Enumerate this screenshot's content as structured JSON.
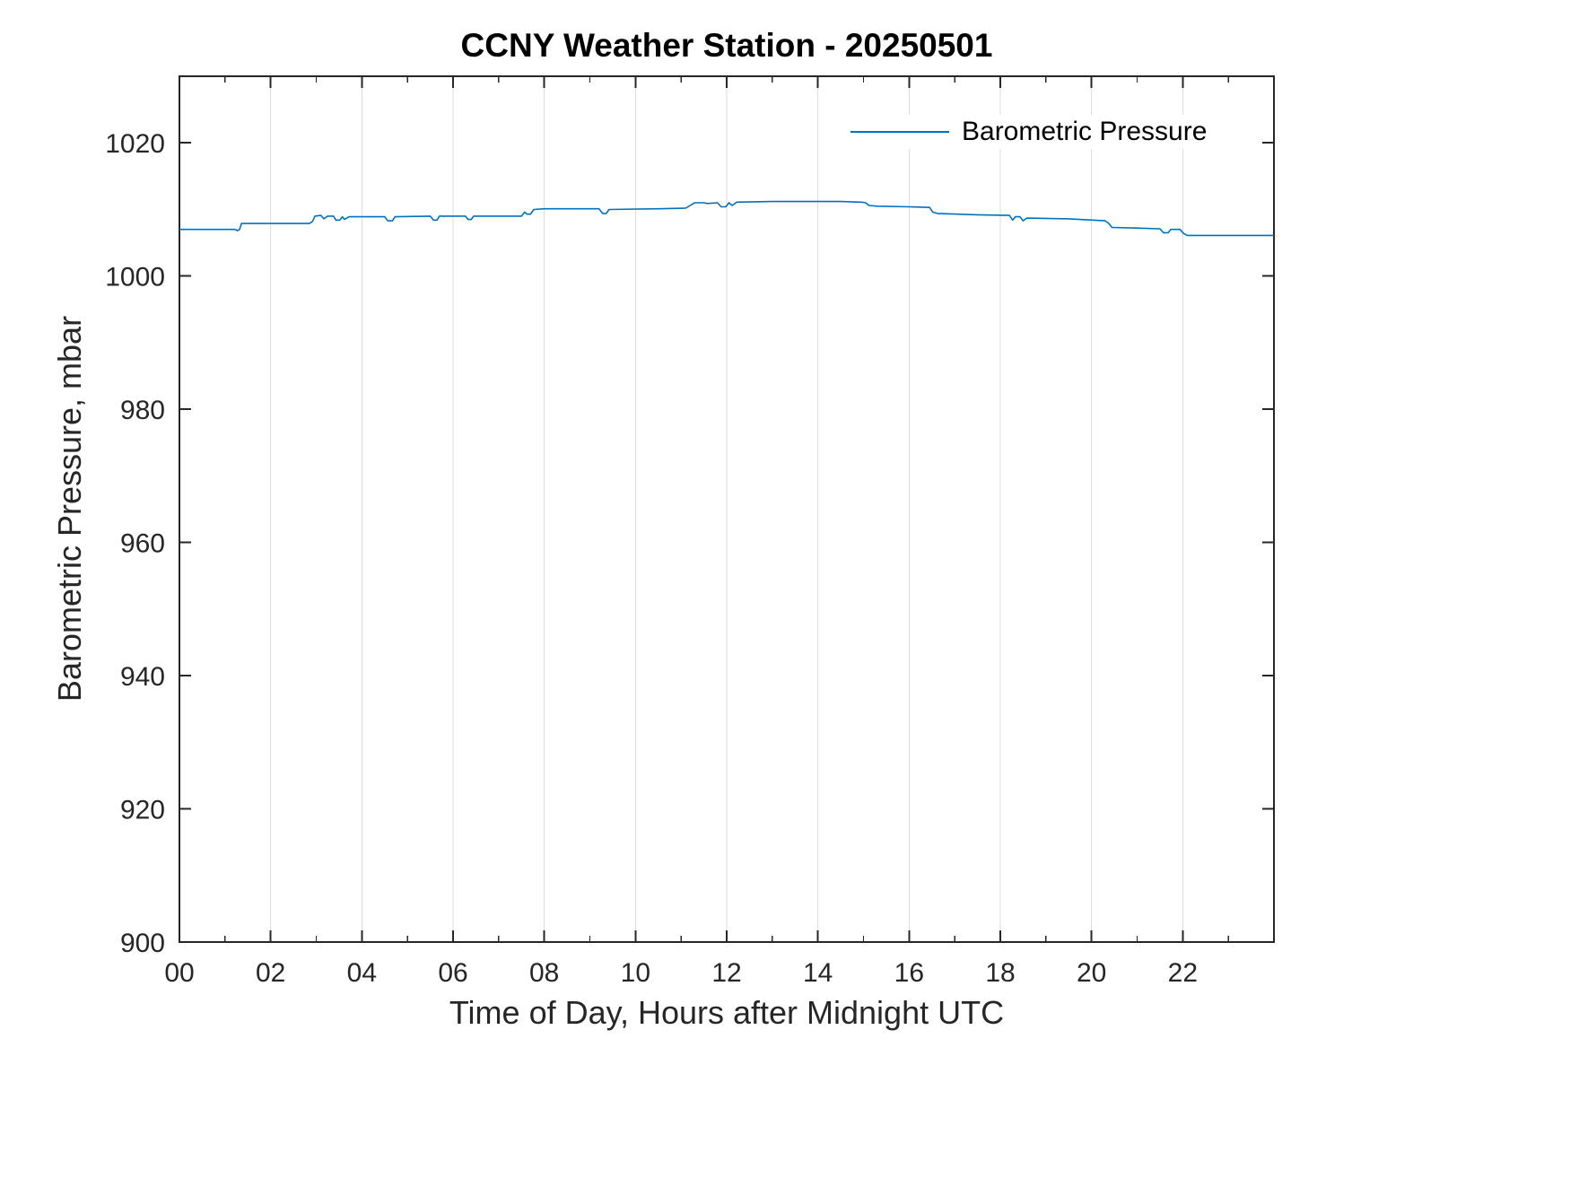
{
  "page": {
    "background": "#ffffff"
  },
  "chart_data": {
    "type": "line",
    "title": "CCNY Weather Station - 20250501",
    "xlabel": "Time of Day, Hours after Midnight UTC",
    "ylabel": "Barometric Pressure, mbar",
    "xlim": [
      0,
      24
    ],
    "ylim": [
      900,
      1030
    ],
    "xticks": [
      0,
      2,
      4,
      6,
      8,
      10,
      12,
      14,
      16,
      18,
      20,
      22
    ],
    "xtick_labels": [
      "00",
      "02",
      "04",
      "06",
      "08",
      "10",
      "12",
      "14",
      "16",
      "18",
      "20",
      "22"
    ],
    "yticks": [
      900,
      920,
      940,
      960,
      980,
      1000,
      1020
    ],
    "ytick_labels": [
      "900",
      "920",
      "940",
      "960",
      "980",
      "1000",
      "1020"
    ],
    "minor_xtick_step": 1,
    "grid": {
      "vertical": true,
      "horizontal": false
    },
    "legend": {
      "position": "top-right",
      "entries": [
        "Barometric Pressure"
      ]
    },
    "colors": {
      "line": "#0072BD",
      "axis": "#262626",
      "grid": "#dcdcdc",
      "tick_label": "#262626"
    },
    "series": [
      {
        "name": "Barometric Pressure",
        "points": [
          [
            0.0,
            1007.0
          ],
          [
            1.22,
            1007.0
          ],
          [
            1.27,
            1006.8
          ],
          [
            1.32,
            1007.0
          ],
          [
            1.36,
            1007.9
          ],
          [
            2.85,
            1007.9
          ],
          [
            2.92,
            1008.2
          ],
          [
            2.97,
            1009.0
          ],
          [
            3.1,
            1009.1
          ],
          [
            3.17,
            1008.6
          ],
          [
            3.25,
            1009.0
          ],
          [
            3.38,
            1009.0
          ],
          [
            3.43,
            1008.4
          ],
          [
            3.52,
            1008.4
          ],
          [
            3.57,
            1008.9
          ],
          [
            3.62,
            1008.5
          ],
          [
            3.72,
            1008.9
          ],
          [
            4.5,
            1008.9
          ],
          [
            4.57,
            1008.3
          ],
          [
            4.67,
            1008.3
          ],
          [
            4.73,
            1008.9
          ],
          [
            5.5,
            1009.0
          ],
          [
            5.57,
            1008.4
          ],
          [
            5.65,
            1008.4
          ],
          [
            5.7,
            1009.0
          ],
          [
            6.27,
            1009.0
          ],
          [
            6.33,
            1008.5
          ],
          [
            6.4,
            1008.5
          ],
          [
            6.45,
            1009.0
          ],
          [
            7.5,
            1009.0
          ],
          [
            7.57,
            1009.6
          ],
          [
            7.62,
            1009.3
          ],
          [
            7.7,
            1009.3
          ],
          [
            7.77,
            1010.0
          ],
          [
            8.0,
            1010.1
          ],
          [
            9.2,
            1010.1
          ],
          [
            9.28,
            1009.4
          ],
          [
            9.36,
            1009.4
          ],
          [
            9.42,
            1010.0
          ],
          [
            10.5,
            1010.1
          ],
          [
            11.1,
            1010.2
          ],
          [
            11.2,
            1010.6
          ],
          [
            11.3,
            1011.0
          ],
          [
            11.5,
            1011.0
          ],
          [
            11.58,
            1010.9
          ],
          [
            11.8,
            1011.0
          ],
          [
            11.88,
            1010.4
          ],
          [
            11.98,
            1010.4
          ],
          [
            12.05,
            1011.0
          ],
          [
            12.12,
            1010.6
          ],
          [
            12.22,
            1011.1
          ],
          [
            13.0,
            1011.2
          ],
          [
            14.5,
            1011.2
          ],
          [
            14.95,
            1011.1
          ],
          [
            15.05,
            1011.0
          ],
          [
            15.12,
            1010.6
          ],
          [
            15.3,
            1010.5
          ],
          [
            16.0,
            1010.4
          ],
          [
            16.45,
            1010.3
          ],
          [
            16.52,
            1009.6
          ],
          [
            16.62,
            1009.4
          ],
          [
            17.5,
            1009.2
          ],
          [
            18.2,
            1009.1
          ],
          [
            18.27,
            1008.4
          ],
          [
            18.33,
            1008.9
          ],
          [
            18.43,
            1008.9
          ],
          [
            18.5,
            1008.3
          ],
          [
            18.58,
            1008.7
          ],
          [
            19.5,
            1008.6
          ],
          [
            20.3,
            1008.3
          ],
          [
            20.38,
            1007.9
          ],
          [
            20.45,
            1007.3
          ],
          [
            21.0,
            1007.2
          ],
          [
            21.5,
            1007.1
          ],
          [
            21.58,
            1006.5
          ],
          [
            21.68,
            1006.5
          ],
          [
            21.74,
            1007.0
          ],
          [
            21.94,
            1007.0
          ],
          [
            22.02,
            1006.4
          ],
          [
            22.1,
            1006.1
          ],
          [
            23.0,
            1006.1
          ],
          [
            24.0,
            1006.1
          ]
        ]
      }
    ]
  }
}
